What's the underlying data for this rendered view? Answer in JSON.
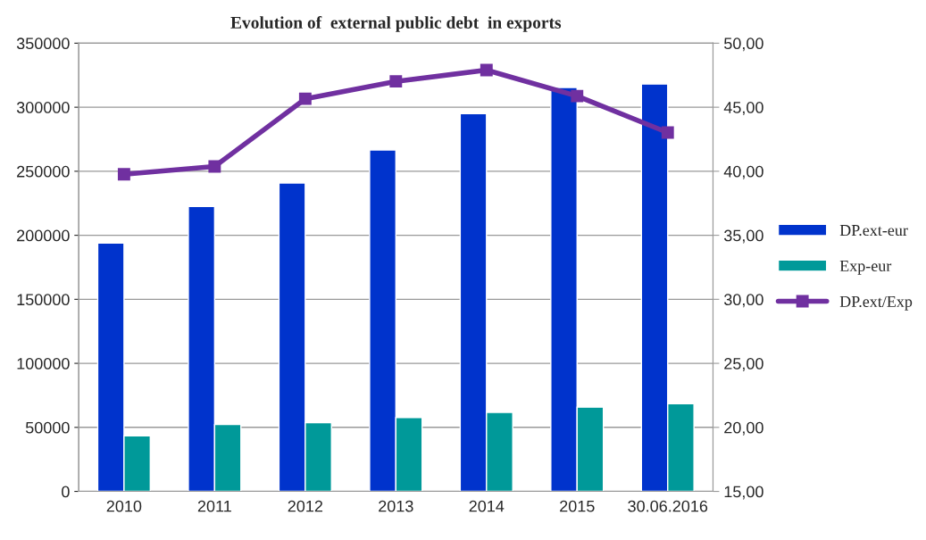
{
  "chart_data": {
    "type": "bar",
    "title": "Evolution of  external public debt  in exports",
    "categories": [
      "2010",
      "2011",
      "2012",
      "2013",
      "2014",
      "2015",
      "30.06.2016"
    ],
    "series": [
      {
        "name": "DP.ext-eur",
        "color": "#0033cc",
        "values": [
          194000,
          222500,
          240800,
          266600,
          295000,
          315400,
          318100
        ]
      },
      {
        "name": "Exp-eur",
        "color": "#009999",
        "values": [
          43400,
          52200,
          53600,
          57700,
          61700,
          65800,
          68500
        ]
      },
      {
        "name": "DP.ext/Exp",
        "type": "line",
        "axis": "y2",
        "color": "#7030a0",
        "marker": "square",
        "values": [
          39.76,
          40.37,
          45.66,
          47.02,
          47.9,
          45.87,
          43.02
        ]
      }
    ],
    "ylim": [
      0,
      350000
    ],
    "yticks": [
      0,
      50000,
      100000,
      150000,
      200000,
      250000,
      300000,
      350000
    ],
    "y2lim": [
      15,
      50
    ],
    "y2ticks": [
      {
        "value": 15,
        "label": "15,00"
      },
      {
        "value": 20,
        "label": "20,00"
      },
      {
        "value": 25,
        "label": "25,00"
      },
      {
        "value": 30,
        "label": "30,00"
      },
      {
        "value": 35,
        "label": "35,00"
      },
      {
        "value": 40,
        "label": "40,00"
      },
      {
        "value": 45,
        "label": "45,00"
      },
      {
        "value": 50,
        "label": "50,00"
      }
    ],
    "grid": "y",
    "legend": "right"
  }
}
